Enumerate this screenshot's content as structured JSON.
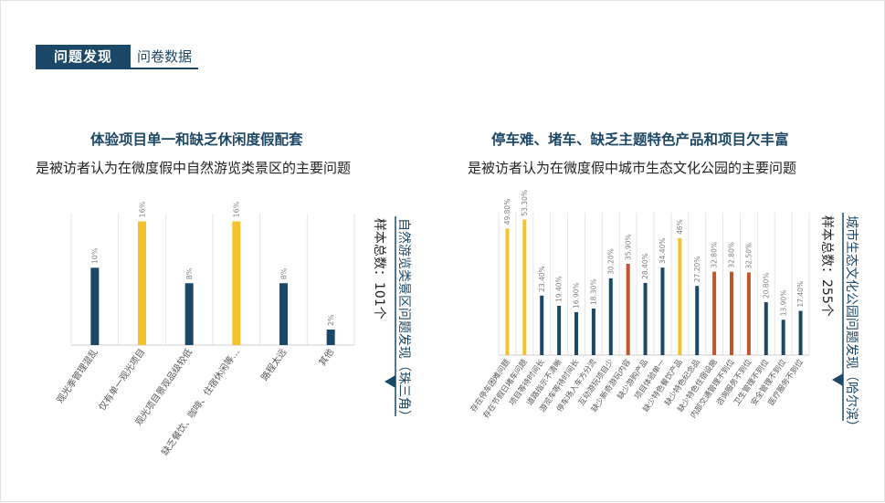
{
  "header": {
    "tag": "问题发现",
    "section": "问卷数据"
  },
  "left": {
    "title": "体验项目单一和缺乏休闲度假配套",
    "subtitle": "是被访者认为在微度假中自然游览类景区的主要问题",
    "sample_label": "样本总数：101个",
    "side_label": "自然游览类景区问题发现（珠三角）"
  },
  "right": {
    "title": "停车难、堵车、缺乏主题特色产品和项目欠丰富",
    "subtitle": "是被访者认为在微度假中城市生态文化公园的主要问题",
    "sample_label": "样本总数：255个",
    "side_label": "城市生态文化公园问题发现（哈尔滨）"
  },
  "chart_data": [
    {
      "type": "bar",
      "categories": [
        "观光季管理混乱",
        "仅有单一观光项目",
        "观光项目景观品级较低",
        "缺乏餐饮、咖啡、住宿休闲等…",
        "路程太远",
        "其他"
      ],
      "values": [
        10,
        16,
        8,
        16,
        8,
        2
      ],
      "data_labels": [
        "10%",
        "16%",
        "8%",
        "16%",
        "8%",
        "2%"
      ],
      "colors": [
        "#1c4867",
        "#f5c22f",
        "#1c4867",
        "#f5c22f",
        "#1c4867",
        "#1c4867"
      ],
      "ylim": [
        0,
        17
      ]
    },
    {
      "type": "bar",
      "categories": [
        "存在停车困难问题",
        "存在节假日堵车问题",
        "项目等待时间长",
        "道路指示不清晰",
        "游览车等待时间长",
        "停车场入车方分流",
        "互动游玩项目少",
        "缺少新奇游玩内容",
        "缺少游购产品",
        "项目体验单一",
        "缺少特色餐饮产品",
        "缺少特色纪念品",
        "缺少特色住宿设施",
        "内部交通管理不到位",
        "咨询服务不到位",
        "卫生管理不到位",
        "安全管理不到位",
        "医疗服务不到位"
      ],
      "values": [
        49.8,
        53.3,
        23.4,
        19.4,
        16.9,
        18.3,
        30.2,
        35.9,
        28.4,
        34.4,
        46,
        27.2,
        32.8,
        32.8,
        32.5,
        20.8,
        13.9,
        17.4
      ],
      "data_labels": [
        "49.80%",
        "53.30%",
        "23.40%",
        "19.40%",
        "16.90%",
        "18.30%",
        "30.20%",
        "35.90%",
        "28.40%",
        "34.40%",
        "46%",
        "27.20%",
        "32.80%",
        "32.80%",
        "32.50%",
        "20.80%",
        "13.90%",
        "17.40%"
      ],
      "colors": [
        "#f5c22f",
        "#f5c22f",
        "#1c4867",
        "#1c4867",
        "#1c4867",
        "#1c4867",
        "#1c4867",
        "#c0562b",
        "#1c4867",
        "#1c4867",
        "#f5c22f",
        "#1c4867",
        "#c0562b",
        "#c0562b",
        "#c0562b",
        "#1c4867",
        "#1c4867",
        "#1c4867"
      ],
      "ylim": [
        0,
        56
      ]
    }
  ]
}
